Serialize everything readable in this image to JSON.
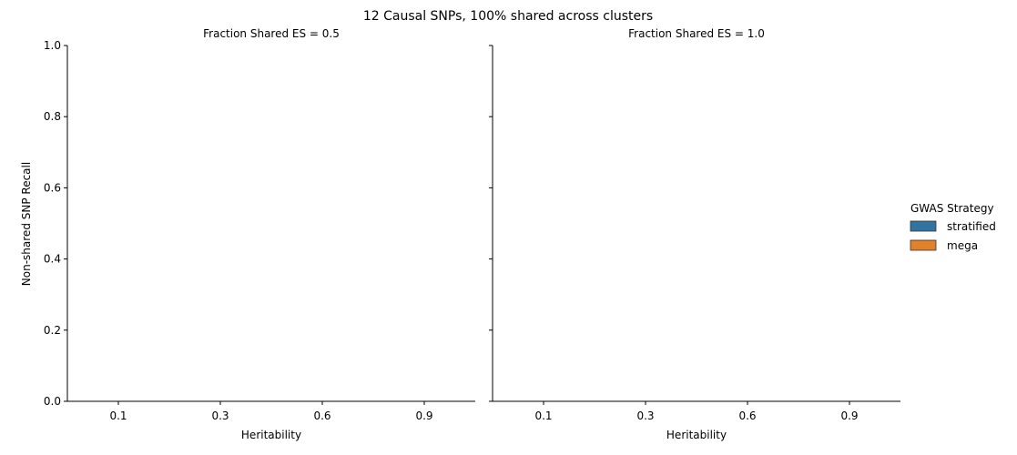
{
  "figure": {
    "suptitle": "12 Causal SNPs, 100% shared across clusters"
  },
  "chart_data": [
    {
      "type": "bar",
      "title": "Fraction Shared ES = 0.5",
      "xlabel": "Heritability",
      "ylabel": "Non-shared SNP Recall",
      "categories": [
        "0.1",
        "0.3",
        "0.6",
        "0.9"
      ],
      "ylim": [
        0,
        1
      ],
      "yticks": [
        "0.0",
        "0.2",
        "0.4",
        "0.6",
        "0.8",
        "1.0"
      ],
      "series": [
        {
          "name": "stratified",
          "values": [
            null,
            null,
            null,
            null
          ]
        },
        {
          "name": "mega",
          "values": [
            null,
            null,
            null,
            null
          ]
        }
      ],
      "grid": false
    },
    {
      "type": "bar",
      "title": "Fraction Shared ES = 1.0",
      "xlabel": "Heritability",
      "ylabel": "",
      "categories": [
        "0.1",
        "0.3",
        "0.6",
        "0.9"
      ],
      "ylim": [
        0,
        1
      ],
      "yticks": [
        "0.0",
        "0.2",
        "0.4",
        "0.6",
        "0.8",
        "1.0"
      ],
      "series": [
        {
          "name": "stratified",
          "values": [
            null,
            null,
            null,
            null
          ]
        },
        {
          "name": "mega",
          "values": [
            null,
            null,
            null,
            null
          ]
        }
      ],
      "grid": false
    }
  ],
  "legend": {
    "title": "GWAS Strategy",
    "placement": "right",
    "items": [
      {
        "label": "stratified",
        "color": "#3274a1"
      },
      {
        "label": "mega",
        "color": "#e1812c"
      }
    ]
  }
}
